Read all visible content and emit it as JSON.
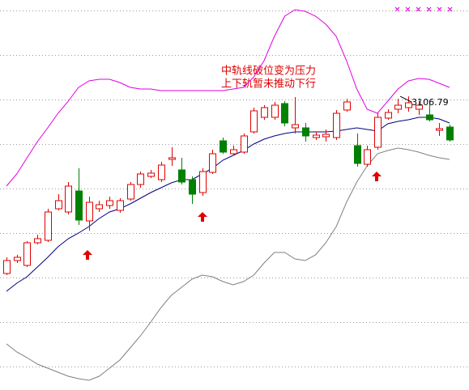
{
  "chart_data": {
    "type": "candlestick",
    "ylim": [
      2381,
      3345
    ],
    "gridlines": [
      3320,
      3210,
      3100,
      2990,
      2880,
      2770,
      2660,
      2550,
      2440
    ],
    "up_color": "#e00000",
    "down_color": "#008000",
    "open": [
      2669,
      2701,
      2689,
      2745,
      2751,
      2829,
      2821,
      2873,
      2799,
      2829,
      2837,
      2825,
      2853,
      2889,
      2909,
      2901,
      2951,
      2925,
      2901,
      2869,
      2919,
      2997,
      2965,
      2969,
      3019,
      3055,
      3055,
      3089,
      3029,
      3029,
      3005,
      3007,
      3005,
      3073,
      2985,
      2939,
      2981,
      3053,
      3075,
      3079,
      3075,
      3061,
      3023,
      3031
    ],
    "high": [
      2709,
      2715,
      2749,
      2765,
      2829,
      2865,
      2895,
      2929,
      2859,
      2849,
      2859,
      2855,
      2895,
      2921,
      2925,
      2945,
      2981,
      2955,
      2909,
      2929,
      2975,
      3005,
      2985,
      3015,
      3079,
      3085,
      3093,
      3095,
      3105,
      3041,
      3019,
      3025,
      3073,
      3101,
      3015,
      2985,
      3065,
      3075,
      3101,
      3106.79,
      3095,
      3089,
      3041,
      3037
    ],
    "low": [
      2665,
      2695,
      2685,
      2741,
      2747,
      2825,
      2815,
      2789,
      2775,
      2821,
      2829,
      2819,
      2849,
      2881,
      2905,
      2895,
      2935,
      2889,
      2841,
      2861,
      2915,
      2965,
      2961,
      2965,
      3015,
      3049,
      3049,
      3033,
      3015,
      2995,
      2999,
      2995,
      2999,
      3069,
      2933,
      2933,
      2975,
      3049,
      3065,
      3069,
      3061,
      3045,
      3009,
      2995
    ],
    "close": [
      2701,
      2709,
      2745,
      2755,
      2821,
      2849,
      2885,
      2801,
      2845,
      2839,
      2849,
      2849,
      2889,
      2915,
      2917,
      2937,
      2955,
      2895,
      2865,
      2921,
      2965,
      2969,
      2975,
      3009,
      3071,
      3079,
      3085,
      3041,
      3037,
      3009,
      3011,
      3013,
      3065,
      3093,
      2941,
      2975,
      3055,
      3067,
      3085,
      3091,
      3085,
      3049,
      3027,
      2999
    ],
    "bands": {
      "upper": {
        "color": "#e000e0",
        "values": [
          2885,
          2915,
          2955,
          2995,
          3029,
          3065,
          3095,
          3129,
          3145,
          3149,
          3149,
          3141,
          3129,
          3125,
          3125,
          3121,
          3121,
          3121,
          3121,
          3121,
          3121,
          3121,
          3125,
          3129,
          3155,
          3195,
          3255,
          3305,
          3321,
          3317,
          3305,
          3285,
          3255,
          3195,
          3125,
          3075,
          3065,
          3095,
          3125,
          3145,
          3151,
          3149,
          3139,
          3129
        ]
      },
      "middle": {
        "color": "#000080",
        "values": [
          2625,
          2645,
          2661,
          2685,
          2709,
          2735,
          2755,
          2769,
          2785,
          2805,
          2821,
          2829,
          2841,
          2855,
          2869,
          2881,
          2893,
          2901,
          2901,
          2915,
          2929,
          2949,
          2961,
          2973,
          2989,
          3001,
          3009,
          3015,
          3019,
          3019,
          3019,
          3019,
          3021,
          3025,
          3029,
          3025,
          3021,
          3039,
          3045,
          3049,
          3055,
          3055,
          3051,
          3041
        ]
      },
      "lower": {
        "color": "#808080",
        "values": [
          2495,
          2475,
          2461,
          2445,
          2435,
          2425,
          2415,
          2409,
          2405,
          2415,
          2435,
          2455,
          2485,
          2515,
          2549,
          2585,
          2615,
          2635,
          2655,
          2665,
          2661,
          2649,
          2641,
          2649,
          2665,
          2695,
          2721,
          2721,
          2705,
          2701,
          2715,
          2745,
          2785,
          2845,
          2895,
          2935,
          2965,
          2973,
          2979,
          2975,
          2969,
          2961,
          2955,
          2951
        ]
      }
    },
    "annotations": [
      "中轨线破位变为压力",
      "上下轨暂未推动下行"
    ]
  }
}
